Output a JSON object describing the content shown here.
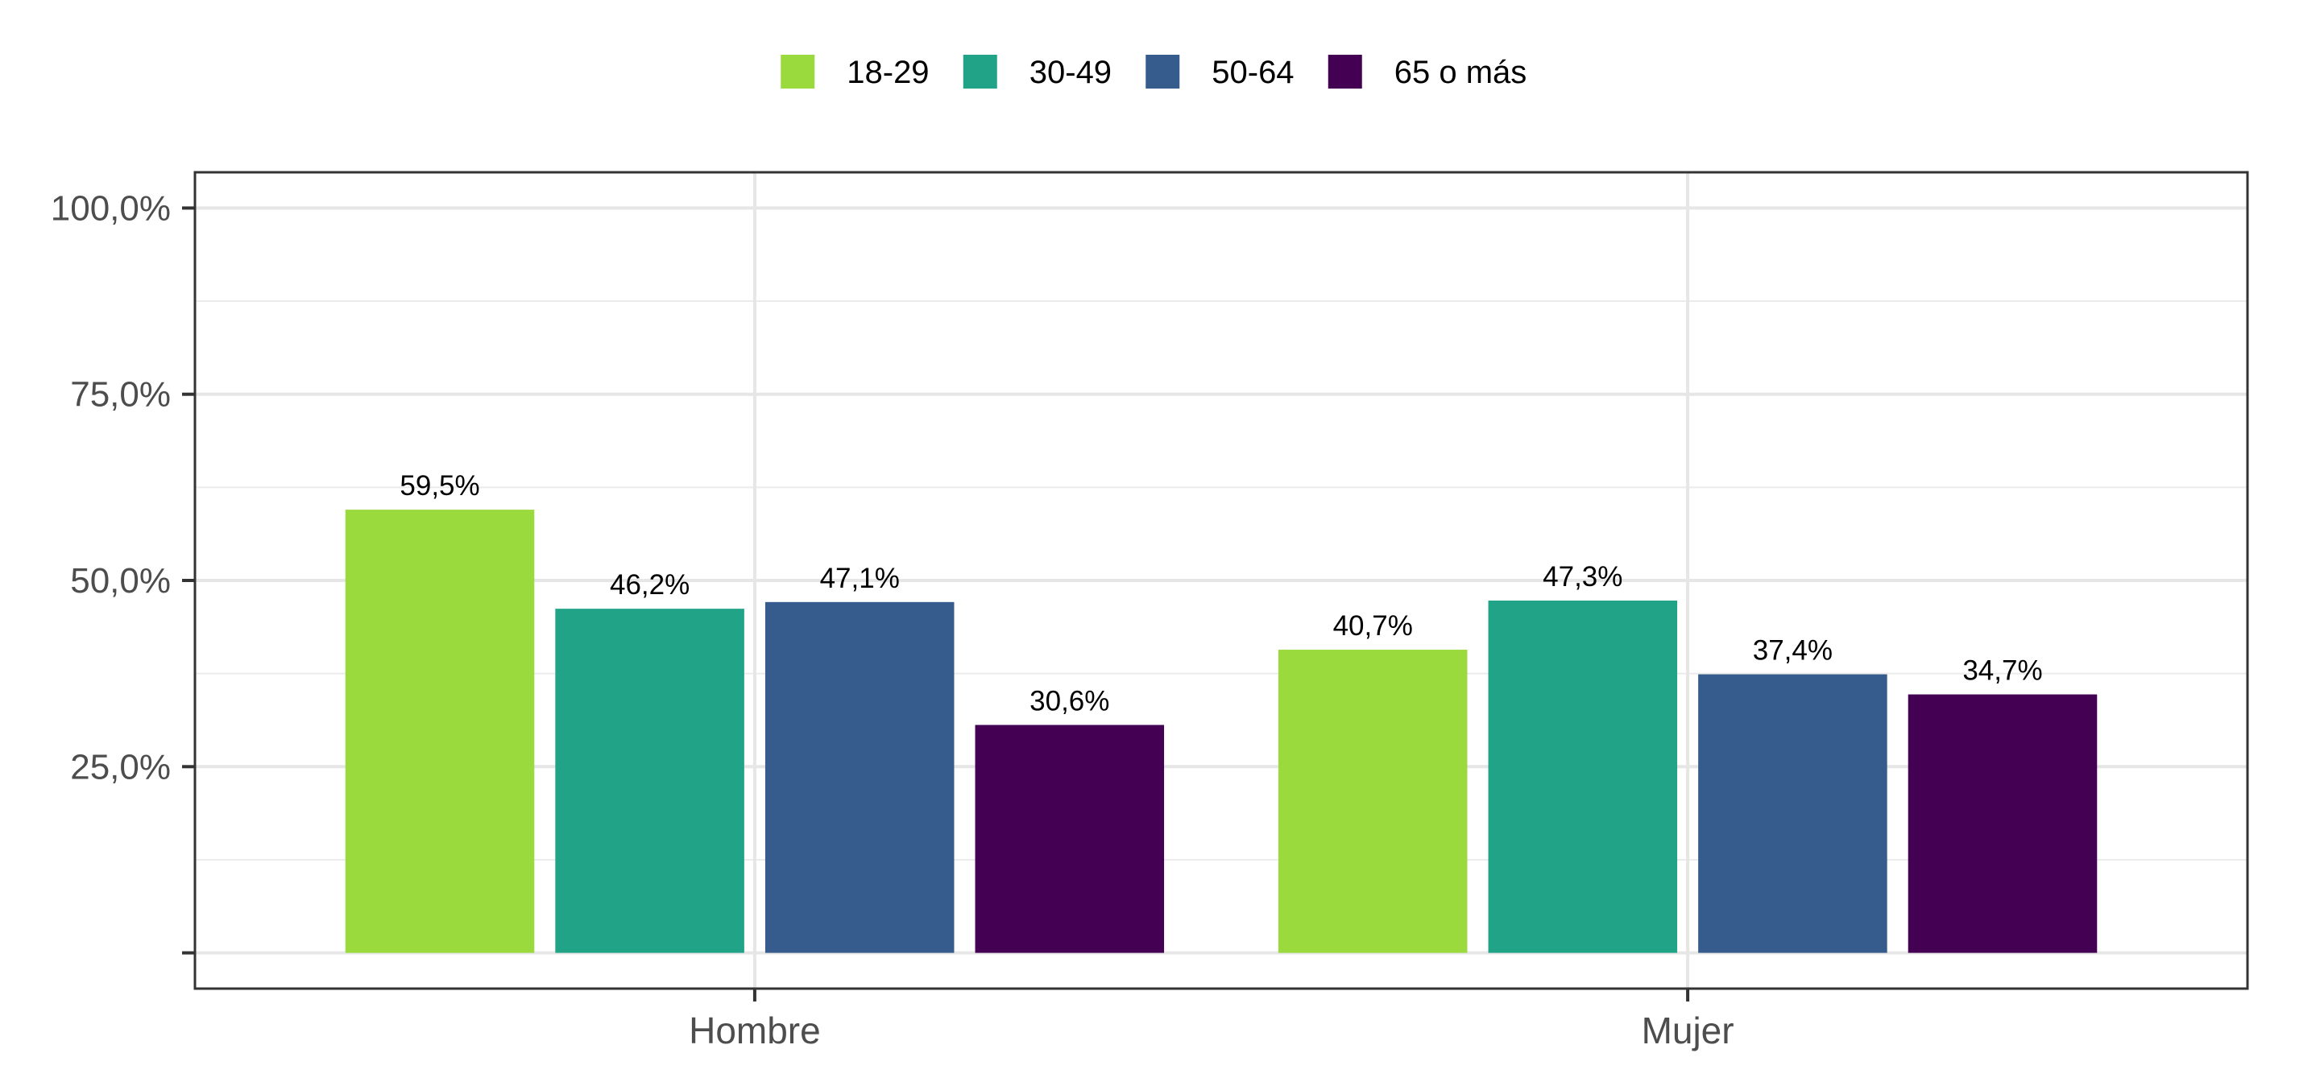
{
  "chart_data": {
    "type": "bar",
    "categories": [
      "Hombre",
      "Mujer"
    ],
    "series": [
      {
        "name": "18-29",
        "color": "#9ADA3D",
        "values": [
          59.5,
          40.7
        ],
        "labels": [
          "59,5%",
          "40,7%"
        ]
      },
      {
        "name": "30-49",
        "color": "#20A387",
        "values": [
          46.2,
          47.3
        ],
        "labels": [
          "46,2%",
          "47,3%"
        ]
      },
      {
        "name": "50-64",
        "color": "#365C8D",
        "values": [
          47.1,
          37.4
        ],
        "labels": [
          "47,1%",
          "37,4%"
        ]
      },
      {
        "name": "65 o más",
        "color": "#440154",
        "values": [
          30.6,
          34.7
        ],
        "labels": [
          "30,6%",
          "34,7%"
        ]
      }
    ],
    "y_ticks": [
      {
        "value": 0,
        "label": ""
      },
      {
        "value": 25,
        "label": "25,0%"
      },
      {
        "value": 50,
        "label": "50,0%"
      },
      {
        "value": 75,
        "label": "75,0%"
      },
      {
        "value": 100,
        "label": "100,0%"
      }
    ],
    "ylim": [
      -4.8,
      104.8
    ],
    "title": "",
    "xlabel": "",
    "ylabel": "",
    "legend_position": "top",
    "grid": true
  }
}
